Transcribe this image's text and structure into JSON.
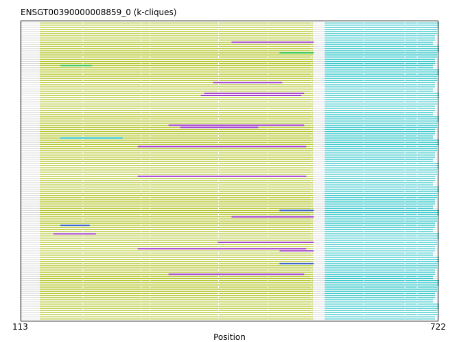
{
  "chart_data": {
    "type": "alignment-tracks",
    "title": "ENSGT00390000008859_0 (k-cliques)",
    "xlabel": "Position",
    "x_min_label": "113",
    "x_max_label": "722",
    "xlim": [
      113,
      722
    ],
    "track_count": 140,
    "colors": {
      "clique_yellow": "#b5c732",
      "clique_cyan": "#3cc8cc",
      "clique_purple": "#a03cc8",
      "clique_green": "#3cc850",
      "clique_blue": "#3c64c8",
      "unassigned": "#dcdcdc"
    },
    "segments": {
      "yellow_block": [
        141,
        540
      ],
      "gap": [
        540,
        557
      ],
      "cyan_block": [
        557,
        724
      ]
    },
    "highlights": [
      {
        "track": 9,
        "x": [
          421,
          541
        ],
        "color": "clique_purple"
      },
      {
        "track": 14,
        "x": [
          491,
          541
        ],
        "color": "clique_green"
      },
      {
        "track": 20,
        "x": [
          171,
          217
        ],
        "color": "clique_green"
      },
      {
        "track": 28,
        "x": [
          394,
          495
        ],
        "color": "clique_purple"
      },
      {
        "track": 33,
        "x": [
          381,
          527
        ],
        "color": "clique_purple"
      },
      {
        "track": 34,
        "x": [
          376,
          523
        ],
        "color": "clique_purple"
      },
      {
        "track": 48,
        "x": [
          329,
          527
        ],
        "color": "clique_purple"
      },
      {
        "track": 49,
        "x": [
          346,
          460
        ],
        "color": "clique_purple"
      },
      {
        "track": 54,
        "x": [
          171,
          262
        ],
        "color": "clique_cyan"
      },
      {
        "track": 58,
        "x": [
          284,
          530
        ],
        "color": "clique_purple"
      },
      {
        "track": 72,
        "x": [
          284,
          530
        ],
        "color": "clique_purple"
      },
      {
        "track": 88,
        "x": [
          491,
          541
        ],
        "color": "clique_blue"
      },
      {
        "track": 91,
        "x": [
          421,
          541
        ],
        "color": "clique_purple"
      },
      {
        "track": 95,
        "x": [
          171,
          214
        ],
        "color": "clique_blue"
      },
      {
        "track": 99,
        "x": [
          161,
          223
        ],
        "color": "clique_purple"
      },
      {
        "track": 103,
        "x": [
          401,
          541
        ],
        "color": "clique_purple"
      },
      {
        "track": 106,
        "x": [
          284,
          530
        ],
        "color": "clique_purple"
      },
      {
        "track": 107,
        "x": [
          491,
          541
        ],
        "color": "clique_purple"
      },
      {
        "track": 113,
        "x": [
          491,
          541
        ],
        "color": "clique_blue"
      },
      {
        "track": 118,
        "x": [
          329,
          527
        ],
        "color": "clique_purple"
      }
    ]
  }
}
